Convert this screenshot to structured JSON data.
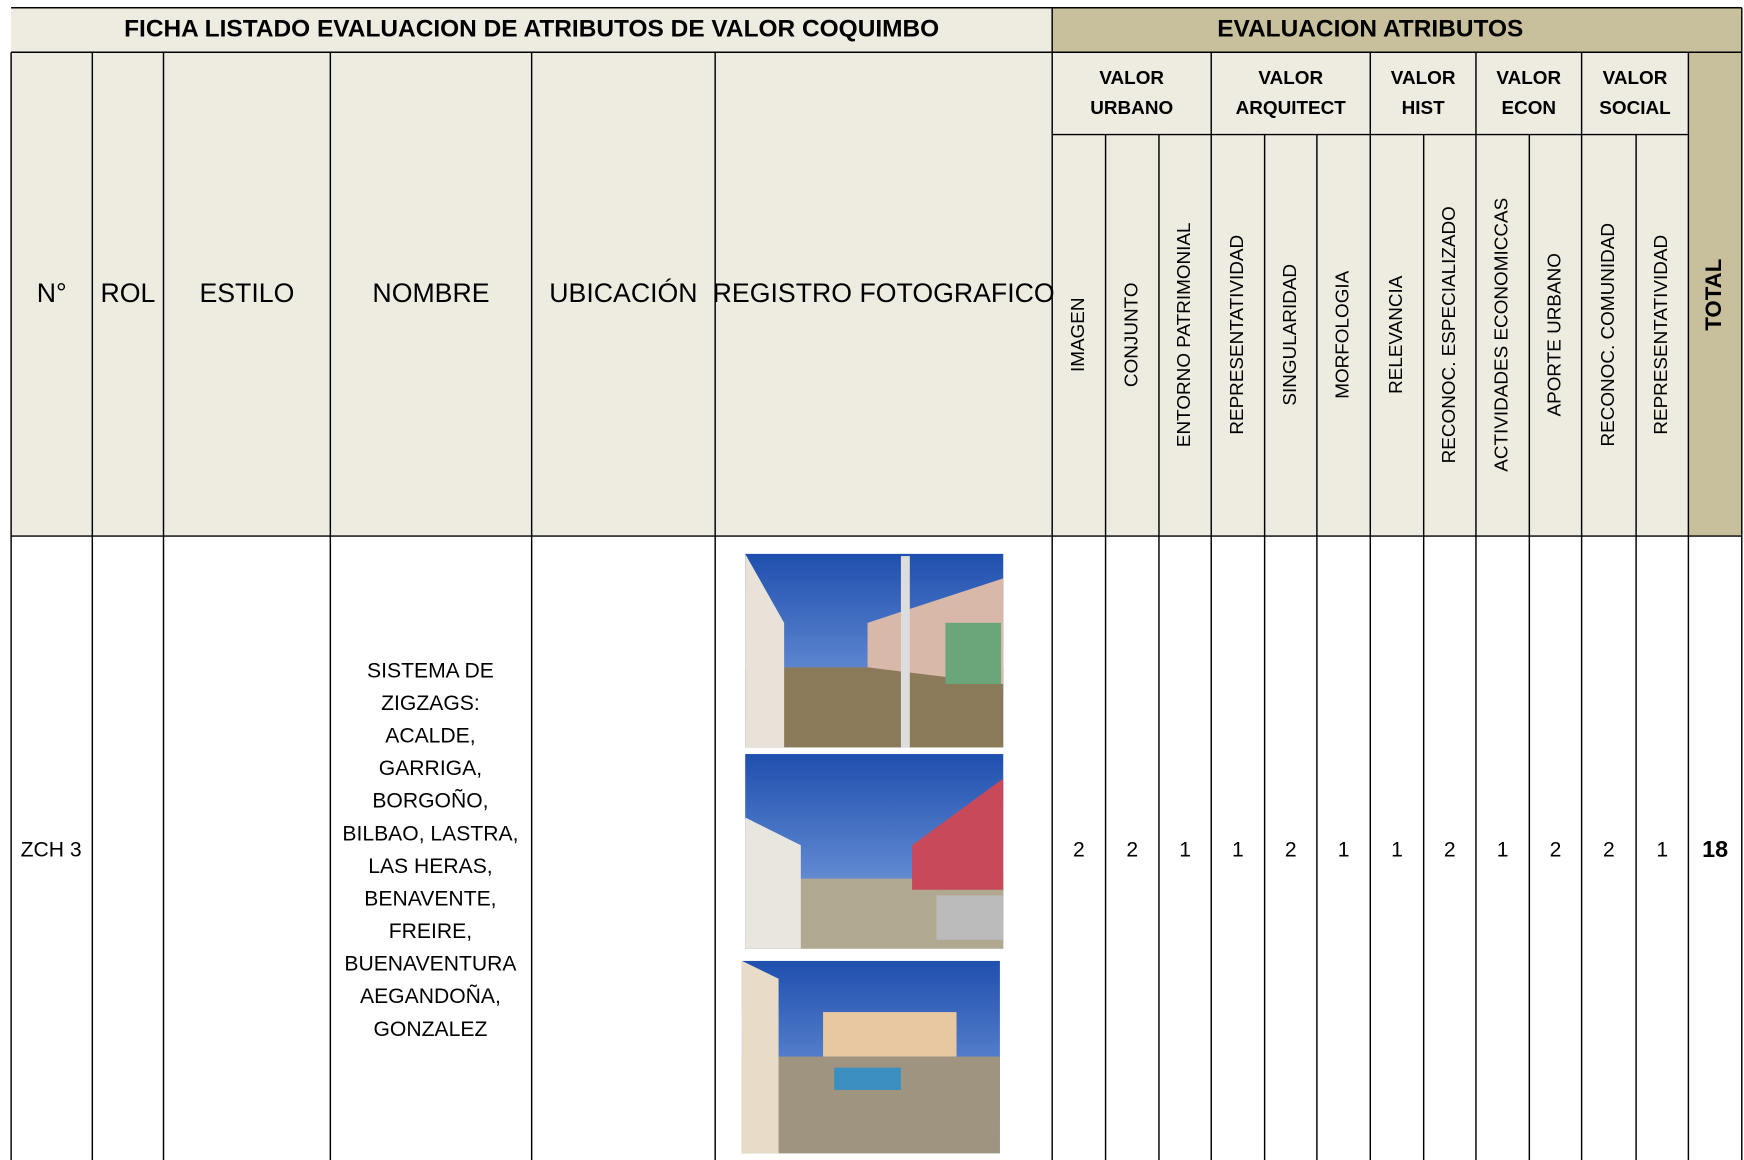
{
  "title": "FICHA LISTADO EVALUACION DE ATRIBUTOS DE VALOR COQUIMBO",
  "section_title": "EVALUACION ATRIBUTOS",
  "columns": [
    "N°",
    "ROL",
    "ESTILO",
    "NOMBRE",
    "UBICACIÓN",
    "REGISTRO FOTOGRAFICO"
  ],
  "groups": [
    {
      "lines": [
        "VALOR",
        "URBANO"
      ]
    },
    {
      "lines": [
        "VALOR",
        "ARQUITECT"
      ]
    },
    {
      "lines": [
        "VALOR",
        "HIST"
      ]
    },
    {
      "lines": [
        "VALOR",
        "ECON"
      ]
    },
    {
      "lines": [
        "VALOR",
        "SOCIAL"
      ]
    }
  ],
  "attributes": [
    "IMAGEN",
    "CONJUNTO",
    "ENTORNO PATRIMONIAL",
    "REPRESENTATIVIDAD",
    "SINGULARIDAD",
    "MORFOLOGIA",
    "RELEVANCIA",
    "RECONOC. ESPECIALIZADO",
    "ACTIVIDADES ECONOMICCAS",
    "APORTE URBANO",
    "RECONOC. COMUNIDAD",
    "REPRESENTATIVIDAD"
  ],
  "total_label": "TOTAL",
  "rows": [
    {
      "n": "ZCH 3",
      "nombre": [
        "SISTEMA DE",
        "ZIGZAGS:",
        "ACALDE,",
        "GARRIGA,",
        "BORGOÑO,",
        "BILBAO, LASTRA,",
        "LAS HERAS,",
        "BENAVENTE,",
        "FREIRE,",
        "BUENAVENTURA",
        "AEGANDOÑA,",
        "GONZALEZ"
      ],
      "scores": [
        2,
        2,
        1,
        1,
        2,
        1,
        1,
        2,
        1,
        2,
        2,
        1
      ],
      "total": 18
    }
  ]
}
